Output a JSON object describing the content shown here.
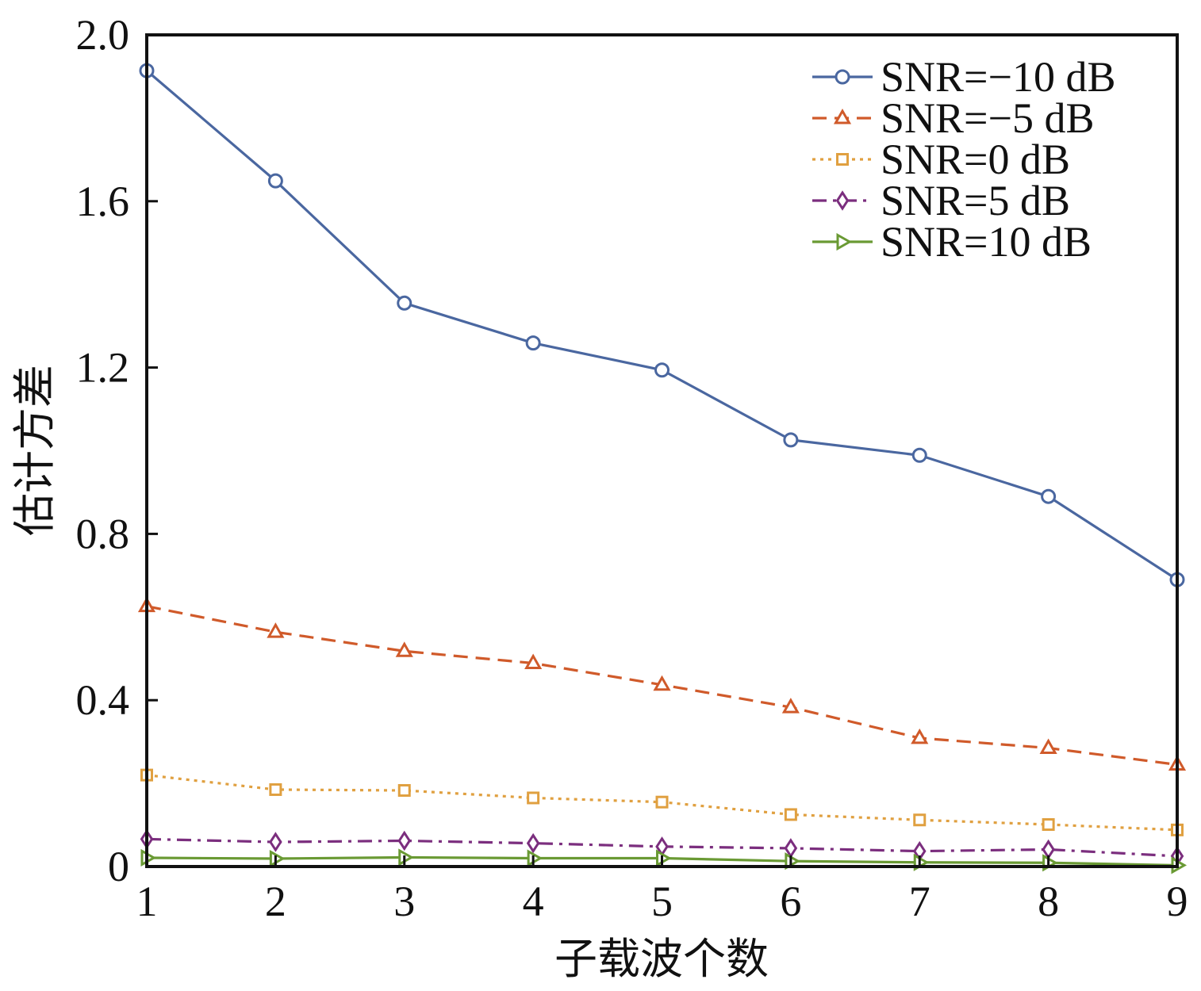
{
  "chart_data": {
    "type": "line",
    "title": "",
    "xlabel": "子载波个数",
    "ylabel": "估计方差",
    "x": [
      1,
      2,
      3,
      4,
      5,
      6,
      7,
      8,
      9
    ],
    "xlim": [
      1,
      9
    ],
    "ylim": [
      0,
      2.0
    ],
    "xticks": [
      "1",
      "2",
      "3",
      "4",
      "5",
      "6",
      "7",
      "8",
      "9"
    ],
    "yticks": [
      {
        "value": 0,
        "label": "0"
      },
      {
        "value": 0.4,
        "label": "0.4"
      },
      {
        "value": 0.8,
        "label": "0.8"
      },
      {
        "value": 1.2,
        "label": "1.2"
      },
      {
        "value": 1.6,
        "label": "1.6"
      },
      {
        "value": 2.0,
        "label": "2.0"
      }
    ],
    "grid": false,
    "legend_position": "top-right",
    "series": [
      {
        "name": "SNR=−10 dB",
        "color": "#4a67a0",
        "dash": "solid",
        "marker": "circle",
        "values": [
          1.914,
          1.649,
          1.355,
          1.259,
          1.194,
          1.026,
          0.989,
          0.89,
          0.69
        ]
      },
      {
        "name": "SNR=−5 dB",
        "color": "#d05a2a",
        "dash": "dashed",
        "marker": "triangle-up",
        "values": [
          0.626,
          0.564,
          0.518,
          0.489,
          0.437,
          0.383,
          0.309,
          0.285,
          0.245
        ]
      },
      {
        "name": "SNR=0 dB",
        "color": "#e0a040",
        "dash": "dotted",
        "marker": "square",
        "values": [
          0.22,
          0.185,
          0.183,
          0.165,
          0.155,
          0.125,
          0.112,
          0.101,
          0.088
        ]
      },
      {
        "name": "SNR=5 dB",
        "color": "#7b2e7e",
        "dash": "dashdot",
        "marker": "diamond",
        "values": [
          0.066,
          0.059,
          0.062,
          0.056,
          0.048,
          0.044,
          0.037,
          0.041,
          0.025
        ]
      },
      {
        "name": "SNR=10 dB",
        "color": "#6a9a34",
        "dash": "solid",
        "marker": "triangle-right",
        "values": [
          0.021,
          0.019,
          0.022,
          0.02,
          0.02,
          0.013,
          0.01,
          0.009,
          0.003
        ]
      }
    ]
  }
}
